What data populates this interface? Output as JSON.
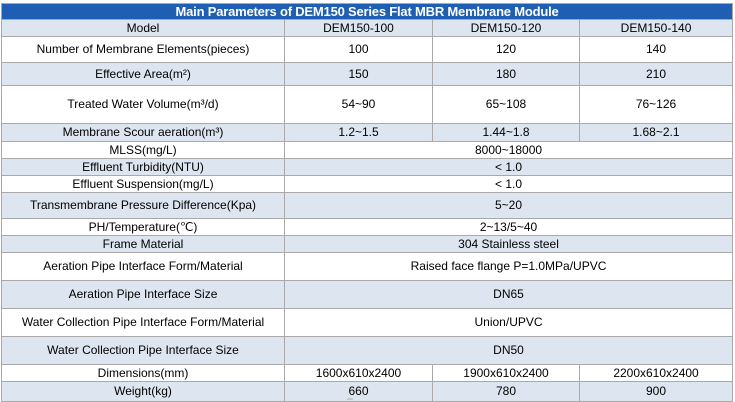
{
  "title": "Main Parameters of DEM150 Series Flat MBR Membrane Module",
  "header": {
    "label": "Model",
    "models": [
      "DEM150-100",
      "DEM150-120",
      "DEM150-140"
    ]
  },
  "rows": [
    {
      "label": "Number of Membrane Elements(pieces)",
      "values": [
        "100",
        "120",
        "140"
      ]
    },
    {
      "label": "Effective Area(m²)",
      "values": [
        "150",
        "180",
        "210"
      ]
    },
    {
      "label": "Treated Water Volume(m³/d)",
      "values": [
        "54~90",
        "65~108",
        "76~126"
      ]
    },
    {
      "label": "Membrane Scour aeration(m³)",
      "values": [
        "1.2~1.5",
        "1.44~1.8",
        "1.68~2.1"
      ]
    },
    {
      "label": "MLSS(mg/L)",
      "value": "8000~18000"
    },
    {
      "label": "Effluent Turbidity(NTU)",
      "value": "< 1.0"
    },
    {
      "label": "Effluent Suspension(mg/L)",
      "value": "< 1.0"
    },
    {
      "label": "Transmembrane Pressure Difference(Kpa)",
      "value": "5~20"
    },
    {
      "label": "PH/Temperature(℃)",
      "value": "2~13/5~40"
    },
    {
      "label": "Frame Material",
      "value": "304 Stainless steel"
    },
    {
      "label": "Aeration Pipe Interface Form/Material",
      "value": "Raised face flange P=1.0MPa/UPVC"
    },
    {
      "label": "Aeration Pipe Interface Size",
      "value": "DN65"
    },
    {
      "label": "Water Collection Pipe Interface Form/Material",
      "value": "Union/UPVC"
    },
    {
      "label": "Water Collection Pipe Interface Size",
      "value": "DN50"
    },
    {
      "label": "Dimensions(mm)",
      "values": [
        "1600x610x2400",
        "1900x610x2400",
        "2200x610x2400"
      ]
    },
    {
      "label": "Weight(kg)",
      "values": [
        "660",
        "780",
        "900"
      ]
    }
  ],
  "colors": {
    "title_bg": "#1f5fb3",
    "title_text": "#ffffff",
    "shade_row": "#dde5f0",
    "border": "#a9a9a9"
  }
}
